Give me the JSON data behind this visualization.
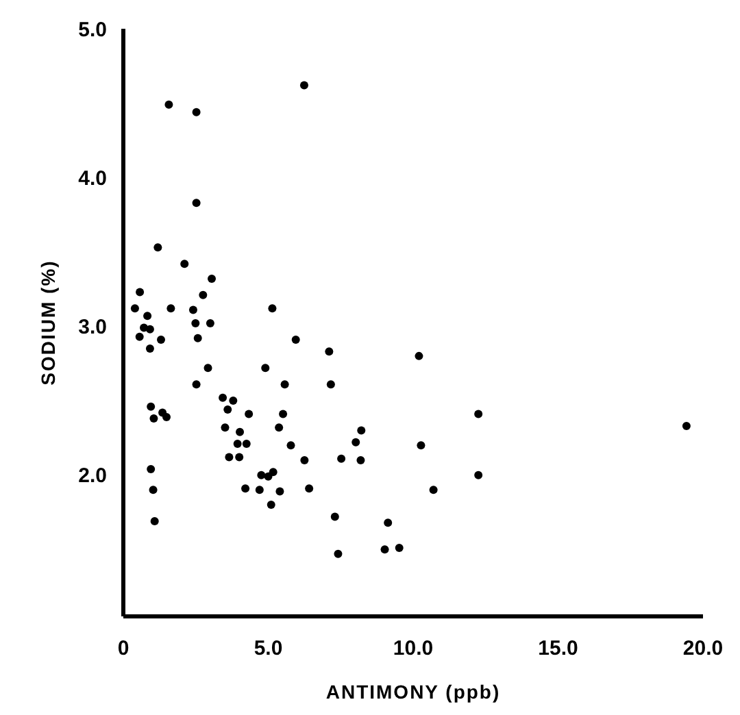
{
  "chart_data": {
    "type": "scatter",
    "xlabel": "ANTIMONY (ppb)",
    "ylabel": "SODIUM (%)",
    "xlim": [
      0,
      20
    ],
    "ylim": [
      1.05,
      5.0
    ],
    "xticks": [
      0,
      {
        "value": 5,
        "label": "5.0"
      },
      {
        "value": 10,
        "label": "10.0"
      },
      {
        "value": 15,
        "label": "15.0"
      },
      {
        "value": 20,
        "label": "20.0"
      }
    ],
    "yticks": [
      {
        "value": 2,
        "label": "2.0"
      },
      {
        "value": 3,
        "label": "3.0"
      },
      {
        "value": 4,
        "label": "4.0"
      },
      {
        "value": 5,
        "label": "5.0"
      }
    ],
    "marker": "circle",
    "grid": false,
    "series": [
      {
        "color": "#000000",
        "x": [
          6.24,
          2.52,
          1.57,
          2.52,
          1.19,
          2.11,
          3.05,
          0.57,
          2.75,
          0.4,
          1.64,
          2.41,
          5.14,
          0.83,
          2.49,
          3.0,
          0.71,
          0.92,
          0.56,
          1.3,
          2.57,
          5.95,
          0.92,
          7.1,
          10.2,
          2.92,
          4.9,
          2.52,
          5.57,
          7.16,
          3.43,
          3.79,
          3.6,
          4.33,
          5.51,
          0.95,
          1.35,
          1.49,
          1.05,
          3.51,
          5.37,
          4.02,
          8.21,
          3.94,
          4.25,
          5.78,
          8.02,
          10.27,
          3.65,
          4.0,
          6.25,
          7.52,
          8.19,
          0.95,
          4.76,
          5.0,
          5.17,
          4.21,
          4.7,
          5.4,
          6.41,
          1.03,
          5.1,
          1.08,
          7.3,
          9.13,
          7.41,
          9.02,
          9.52,
          12.25,
          10.7,
          12.25,
          19.43
        ],
        "values": [
          4.62,
          4.44,
          4.49,
          3.83,
          3.53,
          3.42,
          3.32,
          3.23,
          3.21,
          3.12,
          3.12,
          3.11,
          3.12,
          3.07,
          3.02,
          3.02,
          2.99,
          2.98,
          2.93,
          2.91,
          2.92,
          2.91,
          2.85,
          2.83,
          2.8,
          2.72,
          2.72,
          2.61,
          2.61,
          2.61,
          2.52,
          2.5,
          2.44,
          2.41,
          2.41,
          2.46,
          2.42,
          2.39,
          2.38,
          2.32,
          2.32,
          2.29,
          2.3,
          2.21,
          2.21,
          2.2,
          2.22,
          2.2,
          2.12,
          2.12,
          2.1,
          2.11,
          2.1,
          2.04,
          2.0,
          1.99,
          2.02,
          1.91,
          1.9,
          1.89,
          1.91,
          1.9,
          1.8,
          1.69,
          1.72,
          1.68,
          1.47,
          1.5,
          1.51,
          2.41,
          1.9,
          2.0,
          2.33
        ]
      }
    ]
  }
}
